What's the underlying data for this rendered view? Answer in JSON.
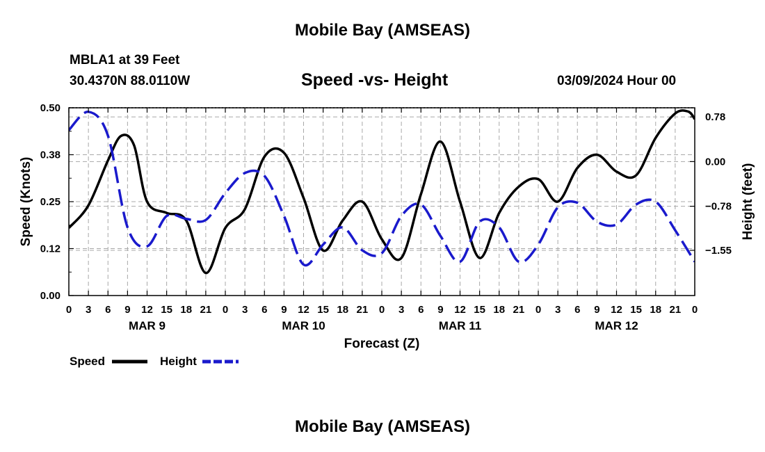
{
  "header": {
    "title": "Mobile Bay (AMSEAS)",
    "station": "MBLA1 at 39 Feet",
    "coordinates": "30.4370N  88.0110W",
    "datetime": "03/09/2024 Hour 00"
  },
  "footer": {
    "title": "Mobile Bay (AMSEAS)"
  },
  "chart_data": {
    "type": "line",
    "title": "Speed -vs- Height",
    "xlabel": "Forecast (Z)",
    "ylabel_left": "Speed (Knots)",
    "ylabel_right": "Height (feet)",
    "x_range_hours": [
      0,
      96
    ],
    "x_tick_step_hours": 3,
    "x_tick_labels": [
      "0",
      "3",
      "6",
      "9",
      "12",
      "15",
      "18",
      "21",
      "0",
      "3",
      "6",
      "9",
      "12",
      "15",
      "18",
      "21",
      "0",
      "3",
      "6",
      "9",
      "12",
      "15",
      "18",
      "21",
      "0",
      "3",
      "6",
      "9",
      "12",
      "15",
      "18",
      "21",
      "0"
    ],
    "day_labels": [
      {
        "label": "MAR 9",
        "hour": 12
      },
      {
        "label": "MAR 10",
        "hour": 36
      },
      {
        "label": "MAR 11",
        "hour": 60
      },
      {
        "label": "MAR 12",
        "hour": 84
      }
    ],
    "ylim_left": [
      0,
      0.5
    ],
    "yticks_left": [
      "0.00",
      "0.12",
      "0.25",
      "0.38",
      "0.50"
    ],
    "ylim_right": [
      -2.34,
      0.94
    ],
    "yticks_right": [
      {
        "value": 0.78,
        "label": "0.78"
      },
      {
        "value": 0.0,
        "label": "0.00"
      },
      {
        "value": -0.78,
        "label": "−0.78"
      },
      {
        "value": -1.55,
        "label": "−1.55"
      }
    ],
    "grid": true,
    "series": [
      {
        "name": "Speed",
        "axis": "left",
        "color": "#000000",
        "style": "solid",
        "x": [
          0,
          3,
          6,
          8,
          10,
          12,
          15,
          18,
          21,
          24,
          27,
          30,
          33,
          36,
          39,
          42,
          45,
          48,
          51,
          54,
          57,
          60,
          63,
          66,
          69,
          72,
          75,
          78,
          81,
          84,
          87,
          90,
          93,
          95,
          96
        ],
        "y": [
          0.18,
          0.24,
          0.36,
          0.425,
          0.4,
          0.25,
          0.22,
          0.2,
          0.06,
          0.18,
          0.23,
          0.37,
          0.38,
          0.26,
          0.12,
          0.2,
          0.25,
          0.15,
          0.1,
          0.27,
          0.41,
          0.25,
          0.1,
          0.22,
          0.29,
          0.31,
          0.25,
          0.34,
          0.375,
          0.33,
          0.32,
          0.42,
          0.485,
          0.49,
          0.47
        ]
      },
      {
        "name": "Height",
        "axis": "right",
        "color": "#1a1acc",
        "style": "dashed",
        "x": [
          0,
          3,
          6,
          9,
          12,
          15,
          18,
          21,
          24,
          27,
          30,
          33,
          36,
          39,
          42,
          45,
          48,
          51,
          54,
          57,
          60,
          63,
          66,
          69,
          72,
          75,
          78,
          81,
          84,
          87,
          90,
          93,
          96
        ],
        "y": [
          0.55,
          0.87,
          0.45,
          -1.15,
          -1.48,
          -0.95,
          -1.0,
          -1.02,
          -0.55,
          -0.2,
          -0.25,
          -0.95,
          -1.8,
          -1.45,
          -1.15,
          -1.55,
          -1.6,
          -0.95,
          -0.75,
          -1.3,
          -1.75,
          -1.05,
          -1.15,
          -1.75,
          -1.45,
          -0.8,
          -0.72,
          -1.05,
          -1.1,
          -0.75,
          -0.7,
          -1.2,
          -1.75
        ]
      }
    ],
    "legend": {
      "position": "bottom-left",
      "entries": [
        {
          "label": "Speed",
          "color": "#000000",
          "style": "solid"
        },
        {
          "label": "Height",
          "color": "#1a1acc",
          "style": "dashed"
        }
      ]
    }
  }
}
